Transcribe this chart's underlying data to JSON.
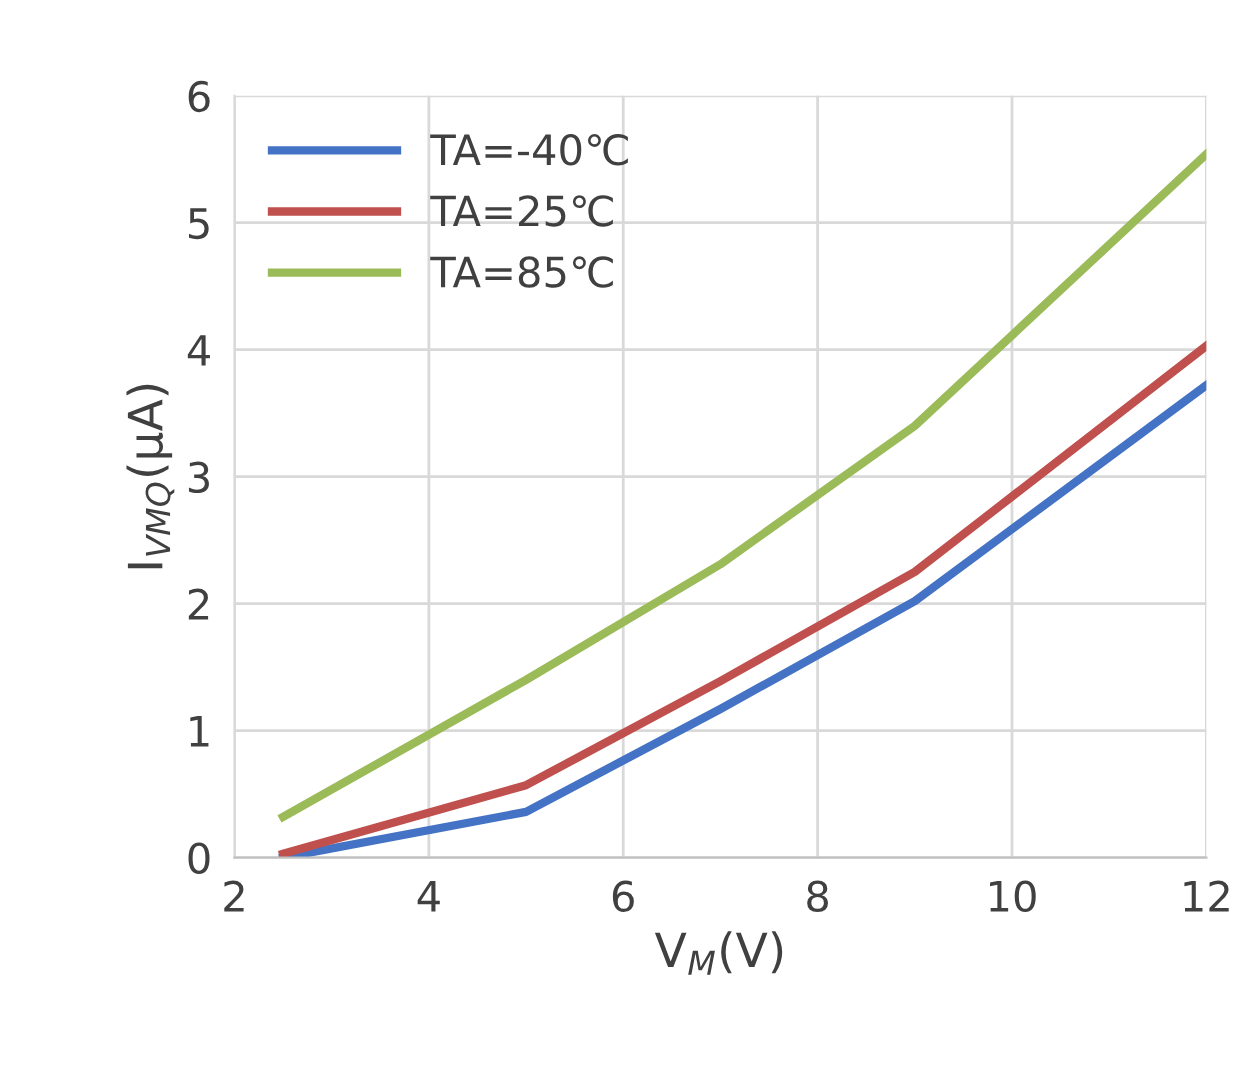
{
  "chart_data": {
    "type": "line",
    "xlabel": "V$_{M}$(V)",
    "ylabel": "I$_{VMQ}$(μA)",
    "x": [
      2.5,
      5,
      7,
      9,
      12
    ],
    "series": [
      {
        "name": "TA=-40℃",
        "color": "#4472c4",
        "values": [
          0,
          0.36,
          1.17,
          2.02,
          3.72
        ]
      },
      {
        "name": "TA=25℃",
        "color": "#c0504d",
        "values": [
          0.03,
          0.57,
          1.39,
          2.25,
          4.03
        ]
      },
      {
        "name": "TA=85℃",
        "color": "#9bbb59",
        "values": [
          0.32,
          1.4,
          2.31,
          3.4,
          5.54
        ]
      }
    ],
    "xlim": [
      2,
      12
    ],
    "xticks": [
      2,
      4,
      6,
      8,
      10,
      12
    ],
    "ylim": [
      0,
      6
    ],
    "yticks": [
      0,
      1,
      2,
      3,
      4,
      5,
      6
    ],
    "grid": true,
    "legend": "top left",
    "marker": "none",
    "line_style": "solid"
  }
}
